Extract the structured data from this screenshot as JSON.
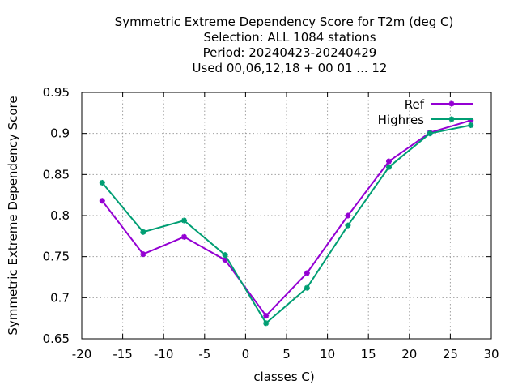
{
  "chart_data": {
    "type": "line",
    "title_lines": [
      "Symmetric Extreme Dependency Score  for T2m (deg C)",
      "Selection: ALL   1084 stations",
      "Period: 20240423-20240429",
      "Used  00,06,12,18 + 00 01 ... 12"
    ],
    "xlabel": "classes C)",
    "ylabel": "Symmetric Extreme Dependency Score",
    "xlim": [
      -20,
      30
    ],
    "ylim": [
      0.65,
      0.95
    ],
    "xticks": [
      -20,
      -15,
      -10,
      -5,
      0,
      5,
      10,
      15,
      20,
      25,
      30
    ],
    "yticks": [
      0.65,
      0.7,
      0.75,
      0.8,
      0.85,
      0.9,
      0.95
    ],
    "xtick_labels": [
      "-20",
      "-15",
      "-10",
      "-5",
      "0",
      "5",
      "10",
      "15",
      "20",
      "25",
      "30"
    ],
    "ytick_labels": [
      "0.65",
      "0.7",
      "0.75",
      "0.8",
      "0.85",
      "0.9",
      "0.95"
    ],
    "grid": true,
    "legend_position": "top-right",
    "x": [
      -17.5,
      -12.5,
      -7.5,
      -2.5,
      2.5,
      7.5,
      12.5,
      17.5,
      22.5,
      27.5
    ],
    "series": [
      {
        "name": "Ref",
        "color": "#9400d3",
        "values": [
          0.818,
          0.753,
          0.774,
          0.746,
          0.678,
          0.73,
          0.8,
          0.866,
          0.901,
          0.916
        ]
      },
      {
        "name": "Highres",
        "color": "#009e73",
        "values": [
          0.84,
          0.78,
          0.794,
          0.752,
          0.669,
          0.712,
          0.788,
          0.859,
          0.9,
          0.91
        ]
      }
    ]
  }
}
